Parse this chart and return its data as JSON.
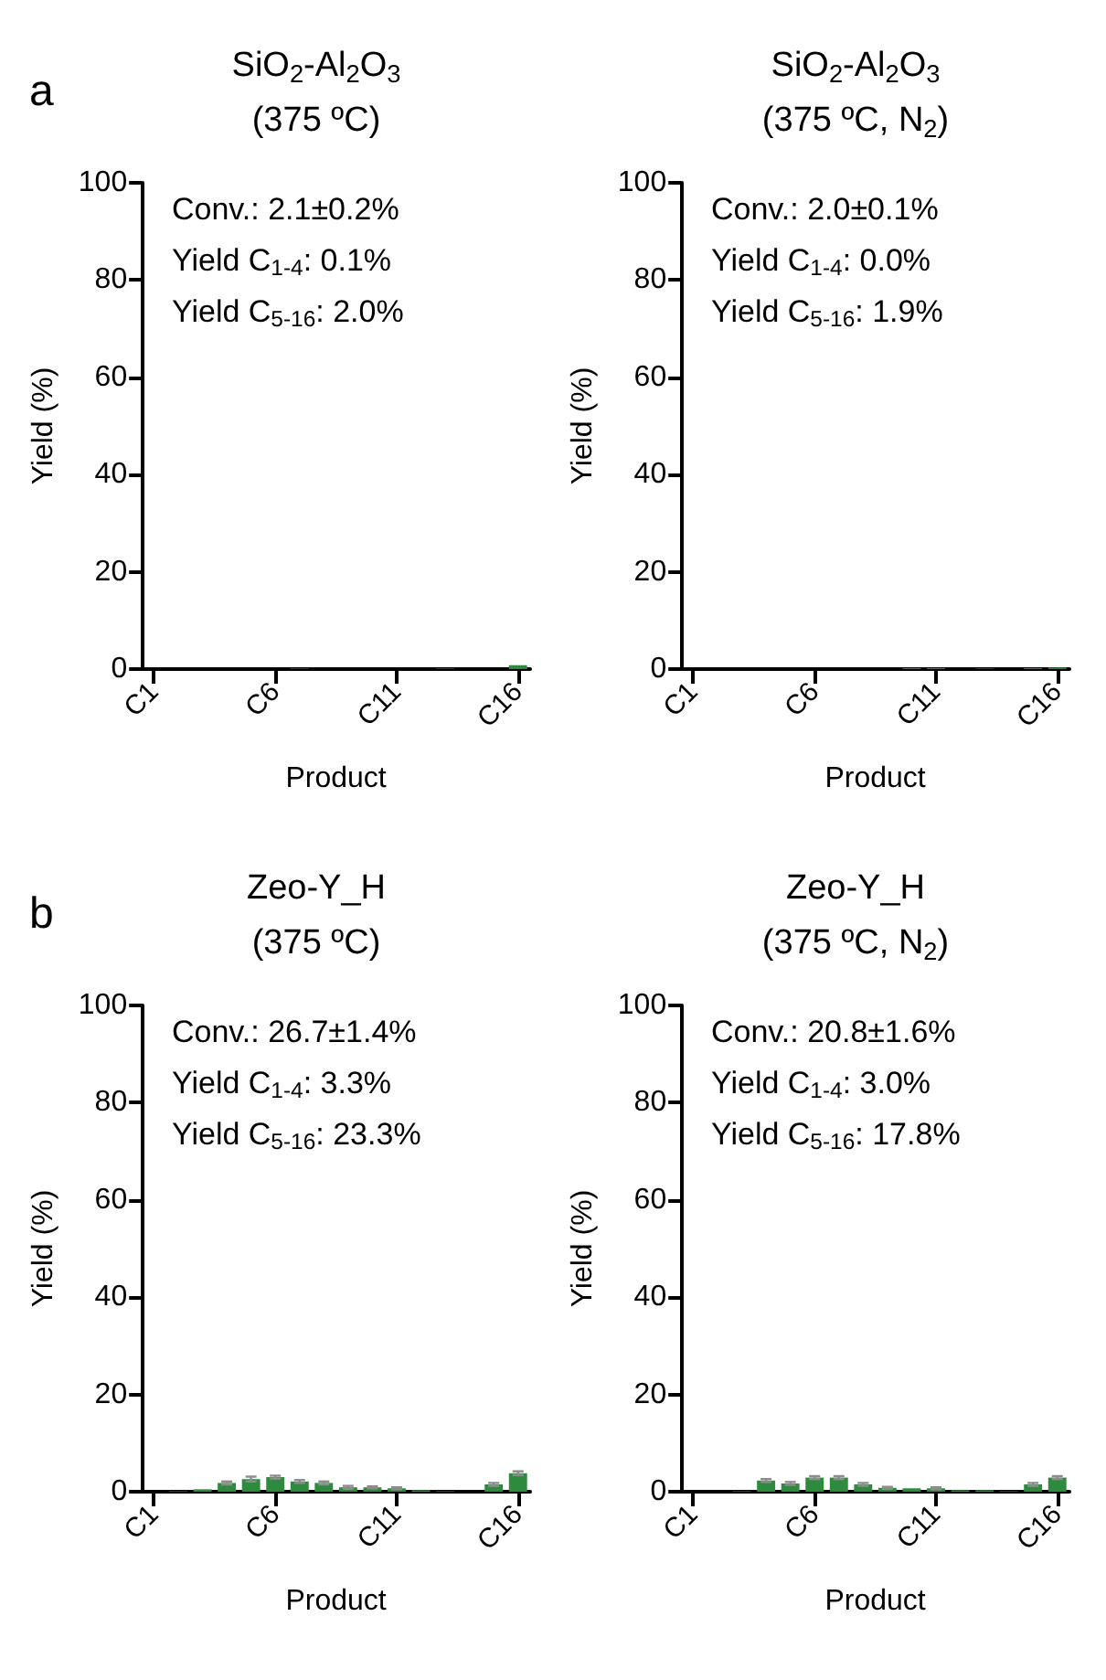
{
  "chart_data": [
    {
      "type": "bar",
      "title": "SiO$_{2}$-Al$_{2}$O$_{3}$",
      "subtitle": "(375 ºC)",
      "xlabel": "Product",
      "ylabel": "Yield (%)",
      "annotations": [
        "a",
        "Conv.: 2.1±0.2%",
        "Yield C$_{1-4}$: 0.1%",
        "Yield C$_{5-16}$: 2.0%"
      ],
      "categories": [
        "C1",
        null,
        null,
        null,
        null,
        "C6",
        null,
        null,
        null,
        null,
        "C11",
        null,
        null,
        null,
        null,
        "C16"
      ],
      "values": [
        0,
        0,
        0,
        0,
        0,
        0,
        0.1,
        0,
        0,
        0,
        0,
        0,
        0.1,
        0,
        0,
        0.8
      ],
      "color": "#2e8b3e",
      "ylim": [
        0,
        100
      ],
      "yticks": [
        0,
        20,
        40,
        60,
        80,
        100
      ],
      "grid": false
    },
    {
      "type": "bar",
      "title": "SiO$_{2}$-Al$_{2}$O$_{3}$",
      "subtitle": "(375 ºC, N$_{2}$)",
      "xlabel": "Product",
      "ylabel": "Yield (%)",
      "annotations": [
        "Conv.: 2.0±0.1%",
        "Yield C$_{1-4}$: 0.0%",
        "Yield C$_{5-16}$: 1.9%"
      ],
      "categories": [
        "C1",
        null,
        null,
        null,
        null,
        "C6",
        null,
        null,
        null,
        null,
        "C11",
        null,
        null,
        null,
        null,
        "C16"
      ],
      "values": [
        0,
        0,
        0,
        0,
        0,
        0,
        0,
        0,
        0,
        0.2,
        0.2,
        0,
        0.1,
        0,
        0.2,
        0.3
      ],
      "color": "#2e8b3e",
      "ylim": [
        0,
        100
      ],
      "yticks": [
        0,
        20,
        40,
        60,
        80,
        100
      ],
      "grid": false
    },
    {
      "type": "bar",
      "title": "Zeo-Y_H",
      "subtitle": "(375 ºC)",
      "xlabel": "Product",
      "ylabel": "Yield (%)",
      "annotations": [
        "b",
        "Conv.: 26.7±1.4%",
        "Yield C$_{1-4}$: 3.3%",
        "Yield C$_{5-16}$: 23.3%"
      ],
      "categories": [
        "C1",
        null,
        null,
        null,
        null,
        "C6",
        null,
        null,
        null,
        null,
        "C11",
        null,
        null,
        null,
        null,
        "C16"
      ],
      "values": [
        0,
        0.1,
        0.5,
        1.8,
        2.6,
        3.0,
        2.1,
        1.8,
        0.9,
        0.9,
        0.7,
        0.3,
        0.1,
        0,
        1.5,
        3.8
      ],
      "errors": [
        null,
        null,
        null,
        0.3,
        0.5,
        0.3,
        0.3,
        0.3,
        0.3,
        0.2,
        0.2,
        null,
        null,
        null,
        0.3,
        0.4
      ],
      "color": "#2e8b3e",
      "ylim": [
        0,
        100
      ],
      "yticks": [
        0,
        20,
        40,
        60,
        80,
        100
      ],
      "grid": false
    },
    {
      "type": "bar",
      "title": "Zeo-Y_H",
      "subtitle": "(375 ºC, N$_{2}$)",
      "xlabel": "Product",
      "ylabel": "Yield (%)",
      "annotations": [
        "Conv.: 20.8±1.6%",
        "Yield C$_{1-4}$: 3.0%",
        "Yield C$_{5-16}$: 17.8%"
      ],
      "categories": [
        "C1",
        null,
        null,
        null,
        null,
        "C6",
        null,
        null,
        null,
        null,
        "C11",
        null,
        null,
        null,
        null,
        "C16"
      ],
      "values": [
        0,
        0,
        0.1,
        2.3,
        1.7,
        2.9,
        2.9,
        1.5,
        0.8,
        0.7,
        0.7,
        0.3,
        0.3,
        0.1,
        1.5,
        2.9
      ],
      "errors": [
        null,
        null,
        null,
        0.3,
        0.3,
        0.3,
        0.3,
        0.3,
        0.2,
        null,
        0.2,
        null,
        null,
        null,
        0.3,
        0.3
      ],
      "color": "#2e8b3e",
      "ylim": [
        0,
        100
      ],
      "yticks": [
        0,
        20,
        40,
        60,
        80,
        100
      ],
      "grid": false
    }
  ]
}
